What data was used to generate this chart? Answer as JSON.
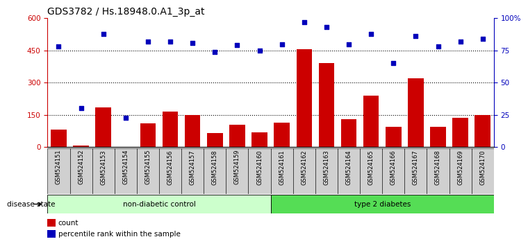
{
  "title": "GDS3782 / Hs.18948.0.A1_3p_at",
  "samples": [
    "GSM524151",
    "GSM524152",
    "GSM524153",
    "GSM524154",
    "GSM524155",
    "GSM524156",
    "GSM524157",
    "GSM524158",
    "GSM524159",
    "GSM524160",
    "GSM524161",
    "GSM524162",
    "GSM524163",
    "GSM524164",
    "GSM524165",
    "GSM524166",
    "GSM524167",
    "GSM524168",
    "GSM524169",
    "GSM524170"
  ],
  "counts": [
    80,
    8,
    185,
    2,
    110,
    165,
    148,
    65,
    105,
    70,
    115,
    455,
    390,
    130,
    240,
    95,
    320,
    95,
    135,
    148
  ],
  "percentile": [
    78,
    30,
    88,
    23,
    82,
    82,
    81,
    74,
    79,
    75,
    80,
    97,
    93,
    80,
    88,
    65,
    86,
    78,
    82,
    84
  ],
  "non_diabetic_count": 10,
  "bar_color": "#cc0000",
  "dot_color": "#0000bb",
  "bg_color": "#ffffff",
  "left_axis_color": "#cc0000",
  "right_axis_color": "#0000bb",
  "ylim_left": [
    0,
    600
  ],
  "ylim_right": [
    0,
    100
  ],
  "yticks_left": [
    0,
    150,
    300,
    450,
    600
  ],
  "yticks_right": [
    0,
    25,
    50,
    75,
    100
  ],
  "ytick_labels_left": [
    "0",
    "150",
    "300",
    "450",
    "600"
  ],
  "ytick_labels_right": [
    "0",
    "25",
    "50",
    "75",
    "100%"
  ],
  "hline_values": [
    150,
    300,
    450
  ],
  "group1_label": "non-diabetic control",
  "group2_label": "type 2 diabetes",
  "disease_state_label": "disease state",
  "legend_count": "count",
  "legend_percentile": "percentile rank within the sample",
  "group1_color": "#ccffcc",
  "group2_color": "#55dd55",
  "title_fontsize": 10,
  "tick_fontsize": 7.5,
  "bar_width": 0.7,
  "box_color": "#d0d0d0"
}
